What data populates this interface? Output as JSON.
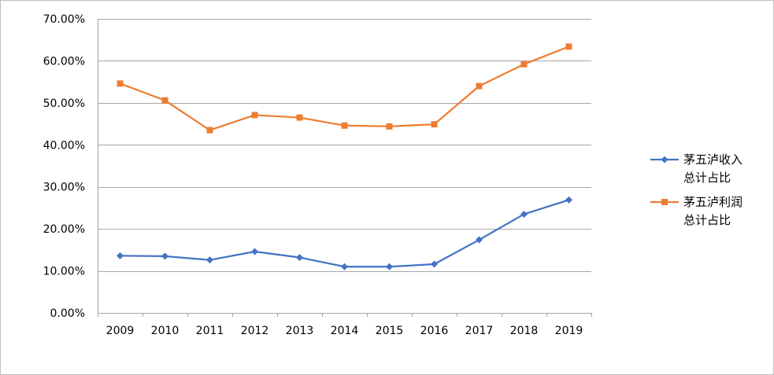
{
  "chart_data": {
    "type": "line",
    "title": "",
    "xlabel": "",
    "ylabel": "",
    "categories": [
      "2009",
      "2010",
      "2011",
      "2012",
      "2013",
      "2014",
      "2015",
      "2016",
      "2017",
      "2018",
      "2019"
    ],
    "y_ticks": [
      "0.00%",
      "10.00%",
      "20.00%",
      "30.00%",
      "40.00%",
      "50.00%",
      "60.00%",
      "70.00%"
    ],
    "ylim": [
      0,
      70
    ],
    "grid": true,
    "legend_position": "right",
    "series": [
      {
        "name_lines": [
          "茅五泸收入",
          "总计占比"
        ],
        "color": "#4472C4",
        "marker": "diamond",
        "values": [
          13.6,
          13.5,
          12.6,
          14.6,
          13.2,
          11.0,
          11.0,
          11.6,
          17.4,
          23.5,
          26.9
        ]
      },
      {
        "name_lines": [
          "茅五泸利润",
          "总计占比"
        ],
        "color": "#ED7D31",
        "marker": "square",
        "values": [
          54.6,
          50.6,
          43.5,
          47.1,
          46.5,
          44.6,
          44.4,
          44.9,
          54.0,
          59.2,
          63.4
        ]
      }
    ]
  }
}
